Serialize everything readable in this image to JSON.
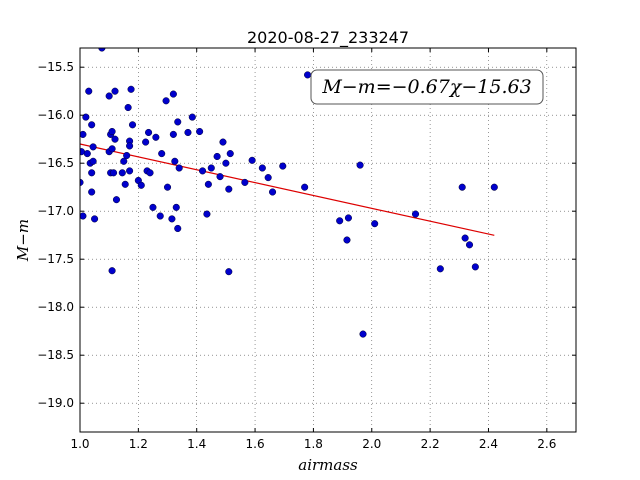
{
  "chart_data": {
    "type": "scatter",
    "title": "2020-08-27_233247",
    "xlabel": "airmass",
    "ylabel": "M−m",
    "xlim": [
      1.0,
      2.7
    ],
    "ylim": [
      -19.3,
      -15.3
    ],
    "y_inverted": true,
    "grid": true,
    "x_ticks": [
      "1.0",
      "1.2",
      "1.4",
      "1.6",
      "1.8",
      "2.0",
      "2.2",
      "2.4",
      "2.6"
    ],
    "x_tick_values": [
      1.0,
      1.2,
      1.4,
      1.6,
      1.8,
      2.0,
      2.2,
      2.4,
      2.6
    ],
    "y_ticks": [
      "−15.5",
      "−16.0",
      "−16.5",
      "−17.0",
      "−17.5",
      "−18.0",
      "−18.5",
      "−19.0"
    ],
    "y_tick_values": [
      -15.5,
      -16.0,
      -16.5,
      -17.0,
      -17.5,
      -18.0,
      -18.5,
      -19.0
    ],
    "annotation": "M−m=−0.67χ−15.63",
    "point_color": "#0000cc",
    "fit_color": "#dd0000",
    "fit": {
      "slope": -0.67,
      "intercept": -15.63,
      "x_range": [
        1.0,
        2.42
      ]
    },
    "points": [
      [
        1.0,
        -16.7
      ],
      [
        1.005,
        -16.38
      ],
      [
        1.01,
        -16.2
      ],
      [
        1.01,
        -17.05
      ],
      [
        1.02,
        -16.02
      ],
      [
        1.025,
        -16.4
      ],
      [
        1.03,
        -15.75
      ],
      [
        1.035,
        -16.5
      ],
      [
        1.04,
        -16.1
      ],
      [
        1.04,
        -16.6
      ],
      [
        1.045,
        -16.48
      ],
      [
        1.045,
        -16.33
      ],
      [
        1.04,
        -16.8
      ],
      [
        1.05,
        -17.08
      ],
      [
        1.075,
        -15.3
      ],
      [
        1.1,
        -15.8
      ],
      [
        1.1,
        -16.38
      ],
      [
        1.105,
        -16.2
      ],
      [
        1.105,
        -16.6
      ],
      [
        1.11,
        -16.17
      ],
      [
        1.11,
        -16.35
      ],
      [
        1.115,
        -16.6
      ],
      [
        1.11,
        -17.62
      ],
      [
        1.12,
        -15.75
      ],
      [
        1.12,
        -16.25
      ],
      [
        1.125,
        -16.88
      ],
      [
        1.145,
        -16.6
      ],
      [
        1.15,
        -16.48
      ],
      [
        1.155,
        -16.72
      ],
      [
        1.16,
        -16.42
      ],
      [
        1.165,
        -15.92
      ],
      [
        1.17,
        -16.27
      ],
      [
        1.17,
        -16.32
      ],
      [
        1.17,
        -16.58
      ],
      [
        1.175,
        -15.73
      ],
      [
        1.18,
        -16.1
      ],
      [
        1.2,
        -16.68
      ],
      [
        1.21,
        -16.73
      ],
      [
        1.225,
        -16.28
      ],
      [
        1.23,
        -16.58
      ],
      [
        1.235,
        -16.18
      ],
      [
        1.24,
        -16.6
      ],
      [
        1.25,
        -16.96
      ],
      [
        1.26,
        -16.23
      ],
      [
        1.275,
        -17.05
      ],
      [
        1.28,
        -16.4
      ],
      [
        1.295,
        -15.85
      ],
      [
        1.3,
        -16.75
      ],
      [
        1.315,
        -17.08
      ],
      [
        1.32,
        -15.78
      ],
      [
        1.32,
        -16.2
      ],
      [
        1.325,
        -16.48
      ],
      [
        1.33,
        -16.96
      ],
      [
        1.335,
        -16.07
      ],
      [
        1.335,
        -17.18
      ],
      [
        1.34,
        -16.55
      ],
      [
        1.37,
        -16.18
      ],
      [
        1.385,
        -16.02
      ],
      [
        1.41,
        -16.17
      ],
      [
        1.42,
        -16.58
      ],
      [
        1.435,
        -17.03
      ],
      [
        1.44,
        -16.72
      ],
      [
        1.45,
        -16.55
      ],
      [
        1.47,
        -16.43
      ],
      [
        1.48,
        -16.64
      ],
      [
        1.49,
        -16.28
      ],
      [
        1.5,
        -16.5
      ],
      [
        1.51,
        -16.77
      ],
      [
        1.51,
        -17.63
      ],
      [
        1.515,
        -16.4
      ],
      [
        1.565,
        -16.7
      ],
      [
        1.59,
        -16.47
      ],
      [
        1.625,
        -16.55
      ],
      [
        1.645,
        -16.65
      ],
      [
        1.66,
        -16.8
      ],
      [
        1.695,
        -16.53
      ],
      [
        1.77,
        -16.75
      ],
      [
        1.78,
        -15.58
      ],
      [
        1.89,
        -17.1
      ],
      [
        1.915,
        -17.3
      ],
      [
        1.92,
        -17.07
      ],
      [
        1.96,
        -16.52
      ],
      [
        1.97,
        -18.28
      ],
      [
        2.01,
        -17.13
      ],
      [
        2.15,
        -17.03
      ],
      [
        2.235,
        -17.6
      ],
      [
        2.31,
        -16.75
      ],
      [
        2.32,
        -17.28
      ],
      [
        2.335,
        -17.35
      ],
      [
        2.355,
        -17.58
      ],
      [
        2.42,
        -16.75
      ]
    ]
  }
}
